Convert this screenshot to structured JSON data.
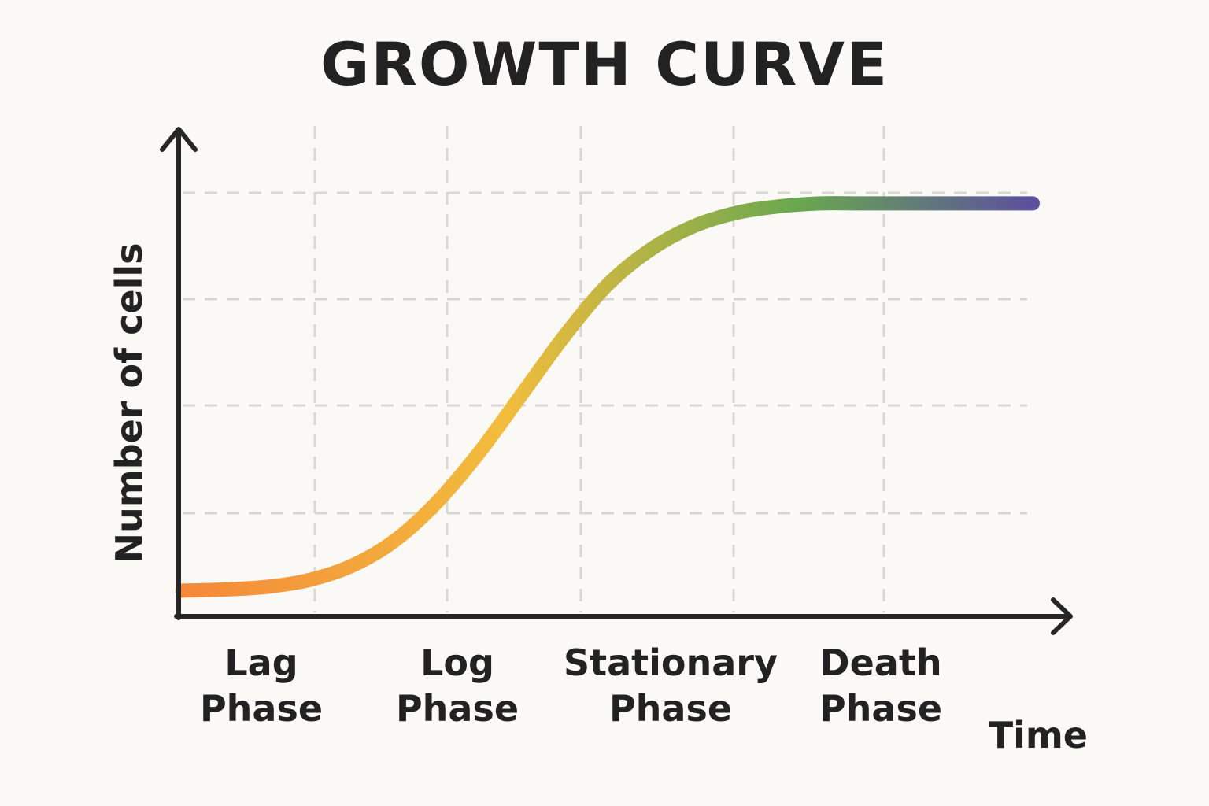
{
  "chart_data": {
    "type": "line",
    "title": "GROWTH CURVE",
    "xlabel": "Time",
    "ylabel": "Number of cells",
    "x": [
      0,
      5,
      10,
      15,
      20,
      25,
      30,
      35,
      40,
      45,
      50,
      55,
      60,
      65,
      70,
      75,
      80,
      85,
      90,
      95,
      100
    ],
    "series": [
      {
        "values": [
          0.0,
          0.3,
          1.0,
          2.8,
          6.5,
          13.0,
          23.0,
          36.0,
          51.0,
          66.0,
          79.0,
          88.0,
          94.0,
          97.5,
          99.2,
          100.0,
          100.0,
          100.0,
          100.0,
          100.0,
          100.0
        ]
      }
    ],
    "xlim": [
      0,
      100
    ],
    "ylim": [
      -5,
      120
    ],
    "grid": true,
    "phases": [
      {
        "line1": "Lag",
        "line2": "Phase"
      },
      {
        "line1": "Log",
        "line2": "Phase"
      },
      {
        "line1": "Stationary",
        "line2": "Phase"
      },
      {
        "line1": "Death",
        "line2": "Phase"
      }
    ],
    "colors": {
      "gradient": [
        "#f5883a",
        "#f2bd3d",
        "#6aa84f",
        "#5b4f9e"
      ],
      "axis": "#262626",
      "grid": "#d9d7d3",
      "text": "#222222"
    }
  }
}
